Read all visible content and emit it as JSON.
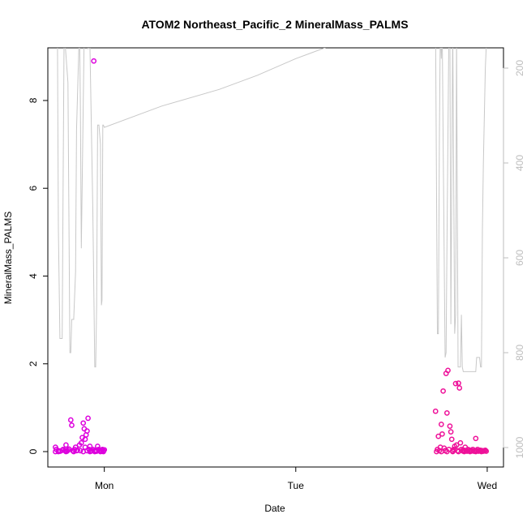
{
  "chart_data": {
    "type": "scatter",
    "title": "ATOM2 Northeast_Pacific_2 MineralMass_PALMS",
    "xlabel": "Date",
    "ylabel": "MineralMass_PALMS",
    "ylim": [
      0,
      9.2
    ],
    "xlim": [
      -0.295,
      2.085
    ],
    "x_ticks": [
      {
        "label": "Mon",
        "value": 0
      },
      {
        "label": "Tue",
        "value": 1
      },
      {
        "label": "Wed",
        "value": 2
      }
    ],
    "y_ticks": [
      0,
      2,
      4,
      6,
      8
    ],
    "y2_ticks": [
      200,
      400,
      600,
      800,
      1000
    ],
    "y2lim": [
      1020,
      110
    ],
    "series": [
      {
        "kind": "line",
        "axis": "right",
        "color": "#c8c8c8",
        "x": [
          -0.255,
          -0.245,
          -0.24,
          -0.232,
          -0.22,
          -0.215,
          -0.21,
          -0.19,
          -0.18,
          -0.175,
          -0.17,
          -0.16,
          -0.15,
          -0.145,
          -0.13,
          -0.125,
          -0.12,
          -0.105,
          -0.1,
          -0.095,
          -0.085,
          -0.075,
          -0.06,
          -0.05,
          -0.045,
          -0.04,
          -0.035,
          -0.028,
          -0.02,
          -0.015,
          -0.012,
          -0.008,
          -0.005,
          0.0,
          0.3,
          0.6,
          0.8,
          1.0,
          1.2,
          1.4,
          1.6,
          1.73,
          1.74,
          1.745,
          1.75,
          1.755,
          1.76,
          1.765,
          1.77,
          1.78,
          1.785,
          1.79,
          1.8,
          1.805,
          1.81,
          1.82,
          1.83,
          1.835,
          1.84,
          1.848,
          1.86,
          1.865,
          1.87,
          1.875,
          1.88,
          1.89,
          1.9,
          1.91,
          1.92,
          1.93,
          1.94,
          1.945,
          1.96,
          1.965,
          1.97,
          1.975,
          1.98,
          1.985,
          1.99,
          2.0
        ],
        "y": [
          110,
          110,
          540,
          770,
          770,
          430,
          120,
          230,
          800,
          800,
          730,
          730,
          630,
          330,
          110,
          270,
          580,
          120,
          110,
          115,
          160,
          150,
          500,
          830,
          830,
          700,
          320,
          320,
          360,
          700,
          690,
          320,
          320,
          325,
          280,
          245,
          215,
          180,
          150,
          125,
          110,
          110,
          760,
          760,
          360,
          110,
          180,
          110,
          360,
          810,
          800,
          570,
          110,
          110,
          740,
          110,
          760,
          720,
          130,
          830,
          830,
          720,
          830,
          840,
          840,
          840,
          840,
          840,
          840,
          840,
          840,
          810,
          810,
          830,
          830,
          540,
          400,
          300,
          200,
          110
        ]
      },
      {
        "kind": "points",
        "axis": "left",
        "color": "#dd00dd",
        "x": [
          -0.255,
          -0.25,
          -0.24,
          -0.23,
          -0.22,
          -0.215,
          -0.205,
          -0.2,
          -0.195,
          -0.19,
          -0.185,
          -0.175,
          -0.17,
          -0.165,
          -0.16,
          -0.155,
          -0.15,
          -0.145,
          -0.14,
          -0.13,
          -0.125,
          -0.12,
          -0.115,
          -0.11,
          -0.105,
          -0.1,
          -0.1,
          -0.095,
          -0.09,
          -0.09,
          -0.085,
          -0.08,
          -0.075,
          -0.07,
          -0.065,
          -0.06,
          -0.055,
          -0.05,
          -0.045,
          -0.04,
          -0.035,
          -0.03,
          -0.025,
          -0.02,
          -0.015,
          -0.01,
          -0.005,
          0.0,
          -0.255,
          -0.24,
          -0.2,
          -0.16,
          -0.11,
          -0.075,
          -0.05,
          -0.02,
          -0.005
        ],
        "y": [
          0.1,
          0.05,
          0.02,
          0.01,
          0.03,
          0.05,
          0.02,
          0.15,
          0.01,
          0.03,
          0.06,
          0.72,
          0.6,
          0.02,
          0.01,
          0.05,
          0.1,
          0.02,
          0.03,
          0.15,
          0.02,
          0.2,
          0.32,
          0.65,
          0.52,
          0.1,
          0.28,
          0.38,
          0.02,
          0.47,
          0.76,
          0.05,
          0.12,
          0.01,
          0.02,
          0.05,
          8.9,
          0.02,
          0.03,
          0.01,
          0.12,
          0.05,
          0.02,
          0.03,
          0.01,
          0.05,
          0.02,
          0.04,
          0.0,
          0.0,
          0.0,
          0.0,
          0.0,
          0.0,
          0.0,
          0.0,
          0.0
        ]
      },
      {
        "kind": "points",
        "axis": "left",
        "color": "#ee1199",
        "x": [
          1.73,
          1.74,
          1.745,
          1.75,
          1.755,
          1.76,
          1.765,
          1.77,
          1.775,
          1.78,
          1.785,
          1.79,
          1.795,
          1.8,
          1.805,
          1.81,
          1.815,
          1.82,
          1.825,
          1.83,
          1.835,
          1.84,
          1.845,
          1.85,
          1.855,
          1.86,
          1.865,
          1.87,
          1.875,
          1.88,
          1.885,
          1.89,
          1.895,
          1.9,
          1.905,
          1.91,
          1.915,
          1.92,
          1.925,
          1.93,
          1.935,
          1.94,
          1.945,
          1.95,
          1.955,
          1.96,
          1.965,
          1.97,
          1.975,
          1.98,
          1.985,
          1.99,
          1.995,
          1.735,
          1.76,
          1.79,
          1.82,
          1.85,
          1.88,
          1.91,
          1.94,
          1.97
        ],
        "y": [
          0.92,
          0.05,
          0.35,
          0.02,
          0.1,
          0.62,
          0.4,
          1.38,
          0.08,
          0.02,
          1.78,
          0.88,
          1.85,
          0.05,
          0.58,
          0.45,
          0.28,
          0.02,
          0.05,
          0.12,
          1.55,
          0.15,
          0.02,
          1.56,
          1.45,
          0.2,
          0.05,
          0.02,
          0.01,
          0.03,
          0.1,
          0.02,
          0.01,
          0.05,
          0.02,
          0.03,
          0.01,
          0.02,
          0.05,
          0.01,
          0.02,
          0.3,
          0.02,
          0.05,
          0.01,
          0.02,
          0.03,
          0.01,
          0.02,
          0.01,
          0.02,
          0.03,
          0.01,
          0.0,
          0.0,
          0.0,
          0.0,
          0.0,
          0.0,
          0.0,
          0.0,
          0.0
        ]
      }
    ]
  }
}
